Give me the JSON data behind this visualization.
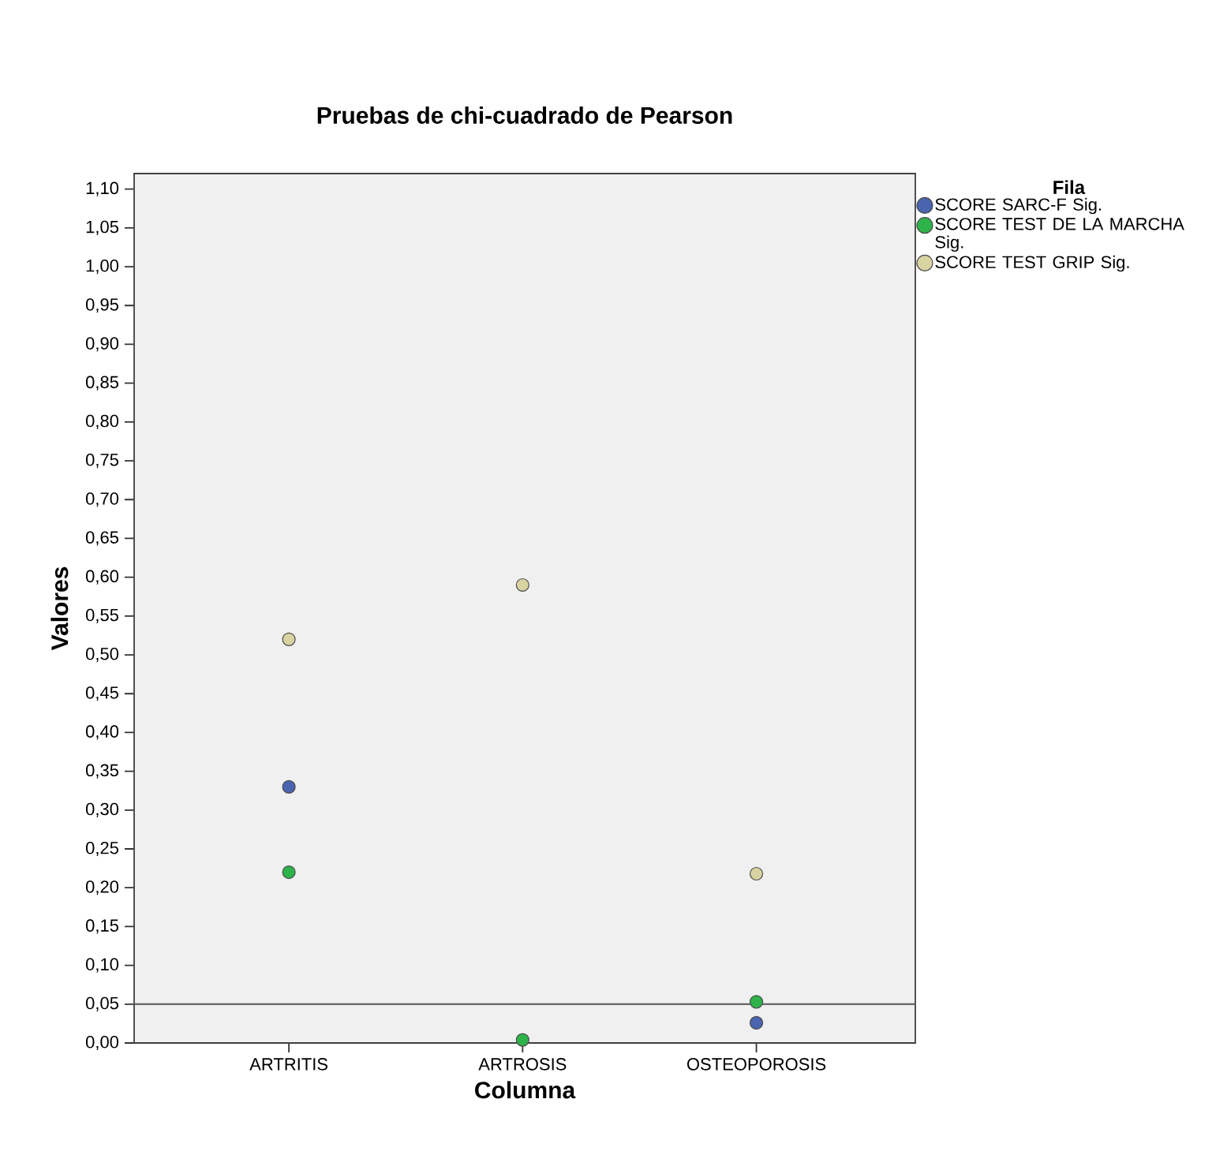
{
  "chart_data": {
    "type": "scatter",
    "title": "Pruebas de chi-cuadrado de Pearson",
    "xlabel": "Columna",
    "ylabel": "Valores",
    "legend_title": "Fila",
    "categories": [
      "ARTRITIS",
      "ARTROSIS",
      "OSTEOPOROSIS"
    ],
    "series": [
      {
        "name": "SCORE SARC-F Sig.",
        "color": "#4a64b0",
        "values": [
          0.33,
          null,
          0.026
        ]
      },
      {
        "name": "SCORE TEST DE LA MARCHA Sig.",
        "color": "#2db34a",
        "values": [
          0.22,
          0.004,
          0.053
        ]
      },
      {
        "name": "SCORE TEST GRIP Sig.",
        "color": "#d8d3a0",
        "values": [
          0.52,
          0.59,
          0.218
        ]
      }
    ],
    "ylim": [
      0,
      1.12
    ],
    "yticks": [
      {
        "value": 0,
        "label": "0,00"
      },
      {
        "value": 0.05,
        "label": "0,05"
      },
      {
        "value": 0.1,
        "label": "0,10"
      },
      {
        "value": 0.15,
        "label": "0,15"
      },
      {
        "value": 0.2,
        "label": "0,20"
      },
      {
        "value": 0.25,
        "label": "0,25"
      },
      {
        "value": 0.3,
        "label": "0,30"
      },
      {
        "value": 0.35,
        "label": "0,35"
      },
      {
        "value": 0.4,
        "label": "0,40"
      },
      {
        "value": 0.45,
        "label": "0,45"
      },
      {
        "value": 0.5,
        "label": "0,50"
      },
      {
        "value": 0.55,
        "label": "0,55"
      },
      {
        "value": 0.6,
        "label": "0,60"
      },
      {
        "value": 0.65,
        "label": "0,65"
      },
      {
        "value": 0.7,
        "label": "0,70"
      },
      {
        "value": 0.75,
        "label": "0,75"
      },
      {
        "value": 0.8,
        "label": "0,80"
      },
      {
        "value": 0.85,
        "label": "0,85"
      },
      {
        "value": 0.9,
        "label": "0,90"
      },
      {
        "value": 0.95,
        "label": "0,95"
      },
      {
        "value": 1.0,
        "label": "1,00"
      },
      {
        "value": 1.05,
        "label": "1,05"
      },
      {
        "value": 1.1,
        "label": "1,10"
      }
    ],
    "ref_lines": [
      {
        "axis": "y",
        "value": 0.05,
        "color": "#555555"
      }
    ],
    "grid": false,
    "legend": "right",
    "marker": "circle"
  }
}
